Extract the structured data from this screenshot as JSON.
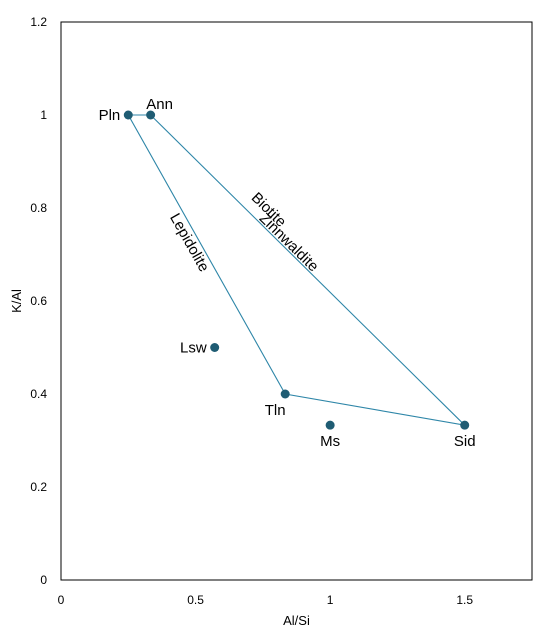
{
  "chart_data": {
    "type": "scatter",
    "xlabel": "Al/Si",
    "ylabel": "K/Al",
    "xlim": [
      0,
      1.75
    ],
    "ylim": [
      0,
      1.2
    ],
    "xticks": [
      0,
      0.5,
      1,
      1.5
    ],
    "xtick_labels": [
      "0",
      "0.5",
      "1",
      "1.5"
    ],
    "yticks": [
      0,
      0.2,
      0.4,
      0.6,
      0.8,
      1,
      1.2
    ],
    "ytick_labels": [
      "0",
      "0.2",
      "0.4",
      "0.6",
      "0.8",
      "1",
      "1.2"
    ],
    "grid": false,
    "colors": {
      "marker": "#1f5c73",
      "line": "#2e86a8",
      "frame": "#000000"
    },
    "points": [
      {
        "label": "Pln",
        "x": 0.25,
        "y": 1.0,
        "label_pos": "left"
      },
      {
        "label": "Ann",
        "x": 0.333,
        "y": 1.0,
        "label_pos": "top"
      },
      {
        "label": "Lsw",
        "x": 0.571,
        "y": 0.5,
        "label_pos": "left"
      },
      {
        "label": "Tln",
        "x": 0.833,
        "y": 0.4,
        "label_pos": "bottom-left"
      },
      {
        "label": "Ms",
        "x": 1.0,
        "y": 0.333,
        "label_pos": "bottom"
      },
      {
        "label": "Sid",
        "x": 1.5,
        "y": 0.333,
        "label_pos": "bottom"
      }
    ],
    "polygon": [
      "Pln",
      "Ann",
      "Sid",
      "Tln"
    ],
    "region_labels": [
      {
        "text": "Biotite",
        "x": 0.77,
        "y": 0.795,
        "along": [
          "Ann",
          "Sid"
        ]
      },
      {
        "text": "Zinnwaldite",
        "x": 0.845,
        "y": 0.725,
        "along": [
          "Ann",
          "Sid"
        ]
      },
      {
        "text": "Lepidolite",
        "x": 0.475,
        "y": 0.725,
        "along": [
          "Pln",
          "Tln"
        ]
      }
    ]
  }
}
